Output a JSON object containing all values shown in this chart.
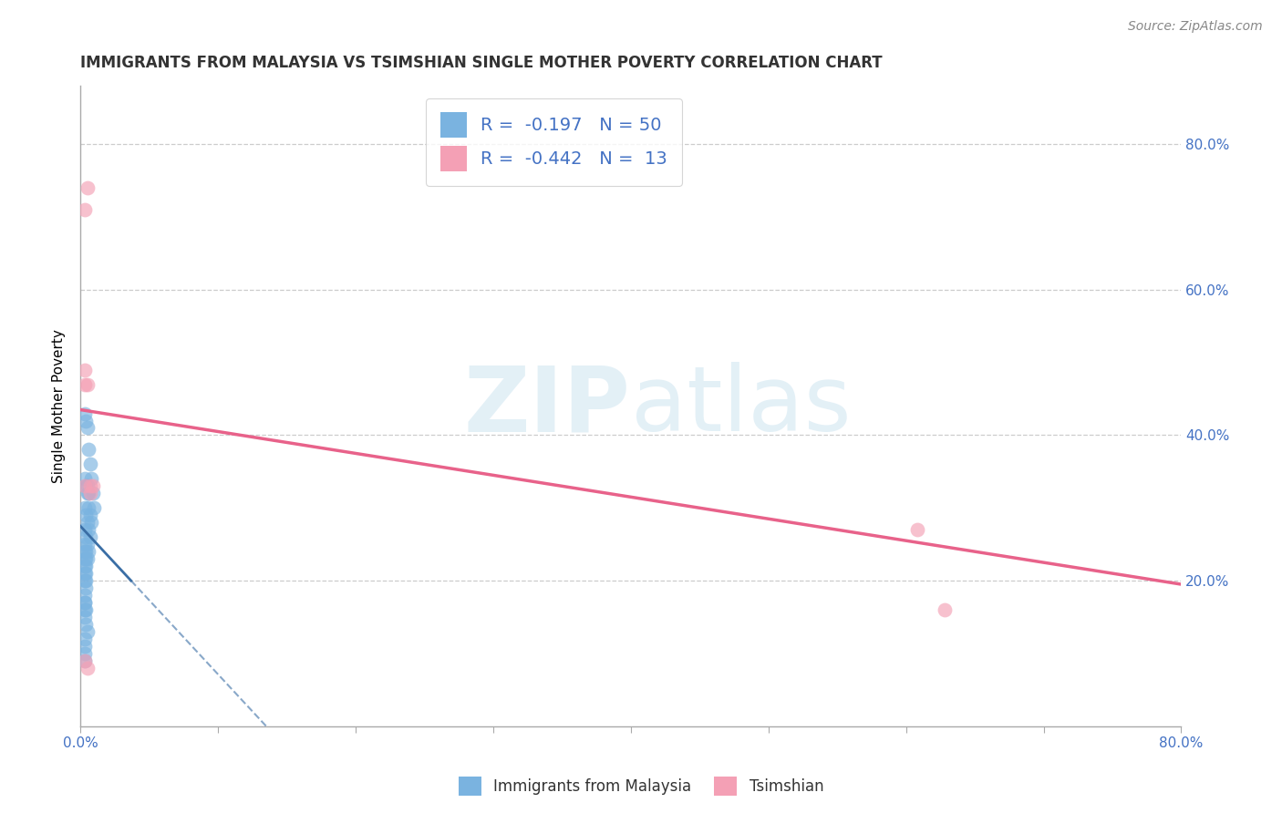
{
  "title": "IMMIGRANTS FROM MALAYSIA VS TSIMSHIAN SINGLE MOTHER POVERTY CORRELATION CHART",
  "source_text": "Source: ZipAtlas.com",
  "ylabel": "Single Mother Poverty",
  "x_min": 0.0,
  "x_max": 0.8,
  "y_min": 0.0,
  "y_max": 0.88,
  "y_ticks": [
    0.2,
    0.4,
    0.6,
    0.8
  ],
  "y_tick_labels": [
    "20.0%",
    "40.0%",
    "60.0%",
    "80.0%"
  ],
  "x_ticks": [
    0.0,
    0.1,
    0.2,
    0.3,
    0.4,
    0.5,
    0.6,
    0.7,
    0.8
  ],
  "x_tick_labels": [
    "0.0%",
    "",
    "",
    "",
    "",
    "",
    "",
    "",
    "80.0%"
  ],
  "blue_color": "#7ab3e0",
  "pink_color": "#f4a0b5",
  "blue_line_color": "#3a6ea5",
  "pink_line_color": "#e8628a",
  "legend_blue_label": "R =  -0.197   N = 50",
  "legend_pink_label": "R =  -0.442   N =  13",
  "watermark_zip": "ZIP",
  "watermark_atlas": "atlas",
  "bottom_legend_blue": "Immigrants from Malaysia",
  "bottom_legend_pink": "Tsimshian",
  "blue_x": [
    0.003,
    0.004,
    0.005,
    0.006,
    0.007,
    0.008,
    0.009,
    0.01,
    0.003,
    0.004,
    0.005,
    0.006,
    0.007,
    0.008,
    0.003,
    0.004,
    0.005,
    0.006,
    0.007,
    0.003,
    0.004,
    0.005,
    0.006,
    0.003,
    0.004,
    0.005,
    0.003,
    0.004,
    0.003,
    0.004,
    0.003,
    0.004,
    0.003,
    0.004,
    0.003,
    0.004,
    0.005,
    0.006,
    0.003,
    0.003,
    0.003,
    0.004,
    0.003,
    0.003,
    0.004,
    0.005,
    0.003,
    0.003,
    0.003,
    0.003
  ],
  "blue_y": [
    0.43,
    0.42,
    0.41,
    0.38,
    0.36,
    0.34,
    0.32,
    0.3,
    0.34,
    0.33,
    0.32,
    0.3,
    0.29,
    0.28,
    0.3,
    0.29,
    0.28,
    0.27,
    0.26,
    0.27,
    0.26,
    0.25,
    0.24,
    0.25,
    0.24,
    0.23,
    0.24,
    0.23,
    0.23,
    0.22,
    0.22,
    0.21,
    0.21,
    0.2,
    0.2,
    0.19,
    0.33,
    0.32,
    0.18,
    0.17,
    0.17,
    0.16,
    0.16,
    0.15,
    0.14,
    0.13,
    0.12,
    0.11,
    0.1,
    0.09
  ],
  "pink_x": [
    0.003,
    0.005,
    0.003,
    0.005,
    0.007,
    0.009,
    0.003,
    0.007,
    0.003,
    0.005,
    0.608,
    0.628,
    0.003
  ],
  "pink_y": [
    0.71,
    0.74,
    0.49,
    0.47,
    0.33,
    0.33,
    0.33,
    0.32,
    0.09,
    0.08,
    0.27,
    0.16,
    0.47
  ],
  "blue_trend_x0": 0.0,
  "blue_trend_y0": 0.275,
  "blue_trend_x1": 0.135,
  "blue_trend_y1": 0.0,
  "pink_trend_x0": 0.0,
  "pink_trend_y0": 0.435,
  "pink_trend_x1": 0.8,
  "pink_trend_y1": 0.195,
  "grid_color": "#cccccc",
  "background_color": "#ffffff",
  "title_fontsize": 12,
  "axis_label_fontsize": 11,
  "tick_fontsize": 11,
  "legend_fontsize": 14
}
